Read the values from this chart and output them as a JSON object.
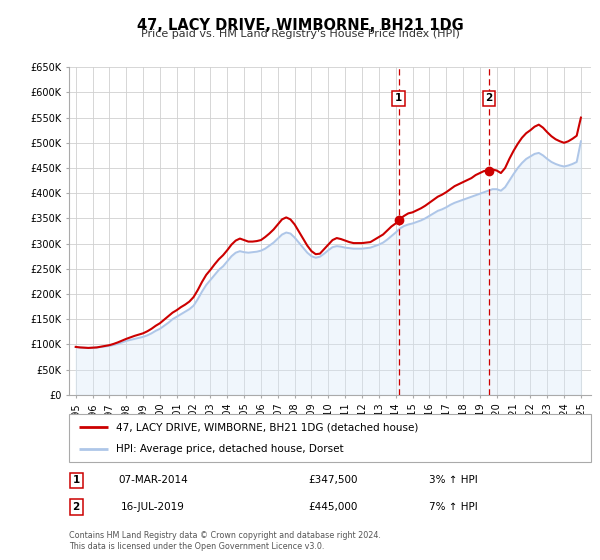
{
  "title": "47, LACY DRIVE, WIMBORNE, BH21 1DG",
  "subtitle": "Price paid vs. HM Land Registry's House Price Index (HPI)",
  "hpi_color": "#aec6e8",
  "hpi_fill_color": "#d6e8f7",
  "property_color": "#cc0000",
  "background_color": "#ffffff",
  "plot_bg_color": "#ffffff",
  "grid_color": "#d0d0d0",
  "ylim": [
    0,
    650000
  ],
  "yticks": [
    0,
    50000,
    100000,
    150000,
    200000,
    250000,
    300000,
    350000,
    400000,
    450000,
    500000,
    550000,
    600000,
    650000
  ],
  "ytick_labels": [
    "£0",
    "£50K",
    "£100K",
    "£150K",
    "£200K",
    "£250K",
    "£300K",
    "£350K",
    "£400K",
    "£450K",
    "£500K",
    "£550K",
    "£600K",
    "£650K"
  ],
  "xlim_start": 1994.6,
  "xlim_end": 2025.6,
  "xtick_years": [
    1995,
    1996,
    1997,
    1998,
    1999,
    2000,
    2001,
    2002,
    2003,
    2004,
    2005,
    2006,
    2007,
    2008,
    2009,
    2010,
    2011,
    2012,
    2013,
    2014,
    2015,
    2016,
    2017,
    2018,
    2019,
    2020,
    2021,
    2022,
    2023,
    2024,
    2025
  ],
  "marker1_x": 2014.18,
  "marker1_y": 347500,
  "marker1_label": "1",
  "marker1_date": "07-MAR-2014",
  "marker1_price": "£347,500",
  "marker1_hpi": "3% ↑ HPI",
  "marker2_x": 2019.54,
  "marker2_y": 445000,
  "marker2_label": "2",
  "marker2_date": "16-JUL-2019",
  "marker2_price": "£445,000",
  "marker2_hpi": "7% ↑ HPI",
  "legend_property": "47, LACY DRIVE, WIMBORNE, BH21 1DG (detached house)",
  "legend_hpi": "HPI: Average price, detached house, Dorset",
  "footer1": "Contains HM Land Registry data © Crown copyright and database right 2024.",
  "footer2": "This data is licensed under the Open Government Licence v3.0.",
  "hpi_data": [
    [
      1995.0,
      95000
    ],
    [
      1995.25,
      94000
    ],
    [
      1995.5,
      93500
    ],
    [
      1995.75,
      93000
    ],
    [
      1996.0,
      93500
    ],
    [
      1996.25,
      94000
    ],
    [
      1996.5,
      95000
    ],
    [
      1996.75,
      96000
    ],
    [
      1997.0,
      97000
    ],
    [
      1997.25,
      99000
    ],
    [
      1997.5,
      101000
    ],
    [
      1997.75,
      104000
    ],
    [
      1998.0,
      107000
    ],
    [
      1998.25,
      109000
    ],
    [
      1998.5,
      111000
    ],
    [
      1998.75,
      113000
    ],
    [
      1999.0,
      115000
    ],
    [
      1999.25,
      118000
    ],
    [
      1999.5,
      122000
    ],
    [
      1999.75,
      127000
    ],
    [
      2000.0,
      131000
    ],
    [
      2000.25,
      137000
    ],
    [
      2000.5,
      143000
    ],
    [
      2000.75,
      150000
    ],
    [
      2001.0,
      155000
    ],
    [
      2001.25,
      160000
    ],
    [
      2001.5,
      165000
    ],
    [
      2001.75,
      170000
    ],
    [
      2002.0,
      177000
    ],
    [
      2002.25,
      190000
    ],
    [
      2002.5,
      205000
    ],
    [
      2002.75,
      218000
    ],
    [
      2003.0,
      228000
    ],
    [
      2003.25,
      238000
    ],
    [
      2003.5,
      248000
    ],
    [
      2003.75,
      255000
    ],
    [
      2004.0,
      265000
    ],
    [
      2004.25,
      275000
    ],
    [
      2004.5,
      282000
    ],
    [
      2004.75,
      285000
    ],
    [
      2005.0,
      283000
    ],
    [
      2005.25,
      282000
    ],
    [
      2005.5,
      283000
    ],
    [
      2005.75,
      284000
    ],
    [
      2006.0,
      286000
    ],
    [
      2006.25,
      290000
    ],
    [
      2006.5,
      296000
    ],
    [
      2006.75,
      302000
    ],
    [
      2007.0,
      310000
    ],
    [
      2007.25,
      318000
    ],
    [
      2007.5,
      322000
    ],
    [
      2007.75,
      320000
    ],
    [
      2008.0,
      312000
    ],
    [
      2008.25,
      302000
    ],
    [
      2008.5,
      292000
    ],
    [
      2008.75,
      282000
    ],
    [
      2009.0,
      275000
    ],
    [
      2009.25,
      272000
    ],
    [
      2009.5,
      274000
    ],
    [
      2009.75,
      280000
    ],
    [
      2010.0,
      287000
    ],
    [
      2010.25,
      293000
    ],
    [
      2010.5,
      295000
    ],
    [
      2010.75,
      294000
    ],
    [
      2011.0,
      292000
    ],
    [
      2011.25,
      291000
    ],
    [
      2011.5,
      290000
    ],
    [
      2011.75,
      290000
    ],
    [
      2012.0,
      290000
    ],
    [
      2012.25,
      291000
    ],
    [
      2012.5,
      292000
    ],
    [
      2012.75,
      295000
    ],
    [
      2013.0,
      298000
    ],
    [
      2013.25,
      302000
    ],
    [
      2013.5,
      308000
    ],
    [
      2013.75,
      315000
    ],
    [
      2014.0,
      322000
    ],
    [
      2014.25,
      330000
    ],
    [
      2014.5,
      335000
    ],
    [
      2014.75,
      338000
    ],
    [
      2015.0,
      340000
    ],
    [
      2015.25,
      343000
    ],
    [
      2015.5,
      346000
    ],
    [
      2015.75,
      350000
    ],
    [
      2016.0,
      355000
    ],
    [
      2016.25,
      360000
    ],
    [
      2016.5,
      365000
    ],
    [
      2016.75,
      368000
    ],
    [
      2017.0,
      372000
    ],
    [
      2017.25,
      377000
    ],
    [
      2017.5,
      381000
    ],
    [
      2017.75,
      384000
    ],
    [
      2018.0,
      387000
    ],
    [
      2018.25,
      390000
    ],
    [
      2018.5,
      393000
    ],
    [
      2018.75,
      396000
    ],
    [
      2019.0,
      399000
    ],
    [
      2019.25,
      402000
    ],
    [
      2019.5,
      405000
    ],
    [
      2019.75,
      408000
    ],
    [
      2020.0,
      408000
    ],
    [
      2020.25,
      405000
    ],
    [
      2020.5,
      412000
    ],
    [
      2020.75,
      425000
    ],
    [
      2021.0,
      438000
    ],
    [
      2021.25,
      450000
    ],
    [
      2021.5,
      460000
    ],
    [
      2021.75,
      468000
    ],
    [
      2022.0,
      473000
    ],
    [
      2022.25,
      478000
    ],
    [
      2022.5,
      480000
    ],
    [
      2022.75,
      475000
    ],
    [
      2023.0,
      468000
    ],
    [
      2023.25,
      462000
    ],
    [
      2023.5,
      458000
    ],
    [
      2023.75,
      455000
    ],
    [
      2024.0,
      453000
    ],
    [
      2024.25,
      455000
    ],
    [
      2024.5,
      458000
    ],
    [
      2024.75,
      462000
    ],
    [
      2025.0,
      503000
    ]
  ],
  "property_data": [
    [
      1995.0,
      95000
    ],
    [
      1995.25,
      94000
    ],
    [
      1995.5,
      93500
    ],
    [
      1995.75,
      93000
    ],
    [
      1996.0,
      93500
    ],
    [
      1996.25,
      94000
    ],
    [
      1996.5,
      95500
    ],
    [
      1996.75,
      97000
    ],
    [
      1997.0,
      98500
    ],
    [
      1997.25,
      101000
    ],
    [
      1997.5,
      104000
    ],
    [
      1997.75,
      107500
    ],
    [
      1998.0,
      111000
    ],
    [
      1998.25,
      114000
    ],
    [
      1998.5,
      117000
    ],
    [
      1998.75,
      119500
    ],
    [
      1999.0,
      122000
    ],
    [
      1999.25,
      126000
    ],
    [
      1999.5,
      131000
    ],
    [
      1999.75,
      137000
    ],
    [
      2000.0,
      142000
    ],
    [
      2000.25,
      149000
    ],
    [
      2000.5,
      156000
    ],
    [
      2000.75,
      163000
    ],
    [
      2001.0,
      168000
    ],
    [
      2001.25,
      174000
    ],
    [
      2001.5,
      179000
    ],
    [
      2001.75,
      185000
    ],
    [
      2002.0,
      194000
    ],
    [
      2002.25,
      208000
    ],
    [
      2002.5,
      224000
    ],
    [
      2002.75,
      238000
    ],
    [
      2003.0,
      248000
    ],
    [
      2003.25,
      259000
    ],
    [
      2003.5,
      269000
    ],
    [
      2003.75,
      277000
    ],
    [
      2004.0,
      287000
    ],
    [
      2004.25,
      298000
    ],
    [
      2004.5,
      306000
    ],
    [
      2004.75,
      310000
    ],
    [
      2005.0,
      307000
    ],
    [
      2005.25,
      304000
    ],
    [
      2005.5,
      304000
    ],
    [
      2005.75,
      305000
    ],
    [
      2006.0,
      307000
    ],
    [
      2006.25,
      313000
    ],
    [
      2006.5,
      320000
    ],
    [
      2006.75,
      328000
    ],
    [
      2007.0,
      338000
    ],
    [
      2007.25,
      348000
    ],
    [
      2007.5,
      352000
    ],
    [
      2007.75,
      348000
    ],
    [
      2008.0,
      338000
    ],
    [
      2008.25,
      324000
    ],
    [
      2008.5,
      310000
    ],
    [
      2008.75,
      296000
    ],
    [
      2009.0,
      285000
    ],
    [
      2009.25,
      279000
    ],
    [
      2009.5,
      280000
    ],
    [
      2009.75,
      289000
    ],
    [
      2010.0,
      298000
    ],
    [
      2010.25,
      307000
    ],
    [
      2010.5,
      311000
    ],
    [
      2010.75,
      309000
    ],
    [
      2011.0,
      306000
    ],
    [
      2011.25,
      303000
    ],
    [
      2011.5,
      301000
    ],
    [
      2011.75,
      301000
    ],
    [
      2012.0,
      301000
    ],
    [
      2012.25,
      302000
    ],
    [
      2012.5,
      303000
    ],
    [
      2012.75,
      308000
    ],
    [
      2013.0,
      313000
    ],
    [
      2013.25,
      318000
    ],
    [
      2013.5,
      326000
    ],
    [
      2013.75,
      334000
    ],
    [
      2014.0,
      340000
    ],
    [
      2014.18,
      347500
    ],
    [
      2014.25,
      349000
    ],
    [
      2014.5,
      355000
    ],
    [
      2014.75,
      360000
    ],
    [
      2015.0,
      362000
    ],
    [
      2015.25,
      366000
    ],
    [
      2015.5,
      370000
    ],
    [
      2015.75,
      375000
    ],
    [
      2016.0,
      381000
    ],
    [
      2016.25,
      387000
    ],
    [
      2016.5,
      393000
    ],
    [
      2016.75,
      397000
    ],
    [
      2017.0,
      402000
    ],
    [
      2017.25,
      408000
    ],
    [
      2017.5,
      414000
    ],
    [
      2017.75,
      418000
    ],
    [
      2018.0,
      422000
    ],
    [
      2018.25,
      426000
    ],
    [
      2018.5,
      430000
    ],
    [
      2018.75,
      436000
    ],
    [
      2019.0,
      440000
    ],
    [
      2019.25,
      444000
    ],
    [
      2019.54,
      445000
    ],
    [
      2019.75,
      447000
    ],
    [
      2020.0,
      445000
    ],
    [
      2020.25,
      440000
    ],
    [
      2020.5,
      450000
    ],
    [
      2020.75,
      468000
    ],
    [
      2021.0,
      484000
    ],
    [
      2021.25,
      498000
    ],
    [
      2021.5,
      510000
    ],
    [
      2021.75,
      519000
    ],
    [
      2022.0,
      525000
    ],
    [
      2022.25,
      532000
    ],
    [
      2022.5,
      536000
    ],
    [
      2022.75,
      530000
    ],
    [
      2023.0,
      521000
    ],
    [
      2023.25,
      513000
    ],
    [
      2023.5,
      507000
    ],
    [
      2023.75,
      503000
    ],
    [
      2024.0,
      500000
    ],
    [
      2024.25,
      503000
    ],
    [
      2024.5,
      508000
    ],
    [
      2024.75,
      514000
    ],
    [
      2025.0,
      550000
    ]
  ]
}
